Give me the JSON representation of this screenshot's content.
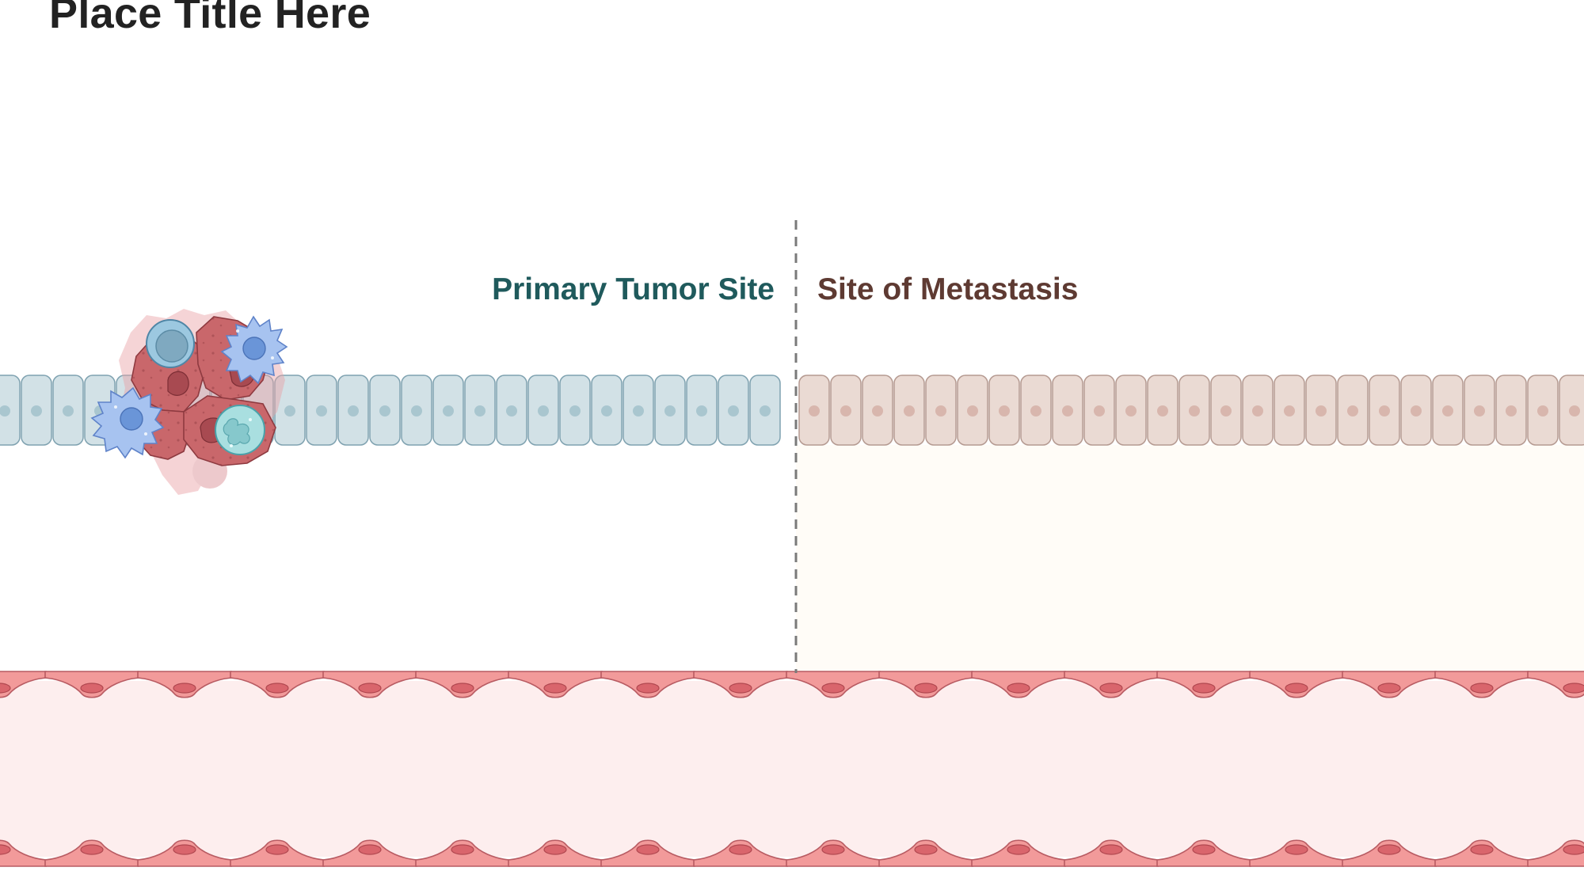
{
  "title": "Place Title Here",
  "labels": {
    "primary": "Primary Tumor Site",
    "metastasis": "Site of Metastasis"
  },
  "colors": {
    "title": "#222222",
    "primary_label": "#1f5a5c",
    "metastasis_label": "#5e3a32",
    "primary_epithelium_fill": "#d2e1e6",
    "primary_epithelium_stroke": "#7fa2b0",
    "primary_nucleus": "#a9c6cf",
    "metastasis_epithelium_fill": "#eadad3",
    "metastasis_epithelium_stroke": "#b59a91",
    "metastasis_nucleus": "#d8b6ad",
    "metastasis_background": "#fffcf7",
    "vessel_lumen": "#fdeeee",
    "endothelial_fill": "#f29a9a",
    "endothelial_stroke": "#b85b62",
    "endothelial_nucleus": "#d9656c",
    "tumor_cell": "#c9676b",
    "tumor_nucleus": "#a84a51",
    "divider": "#7a7a7a"
  },
  "icons": [
    "tumor-cluster",
    "dendritic-cell-icon",
    "lymphocyte-icon",
    "neutrophil-icon",
    "endothelial-cell-icon",
    "epithelial-cell-icon"
  ]
}
